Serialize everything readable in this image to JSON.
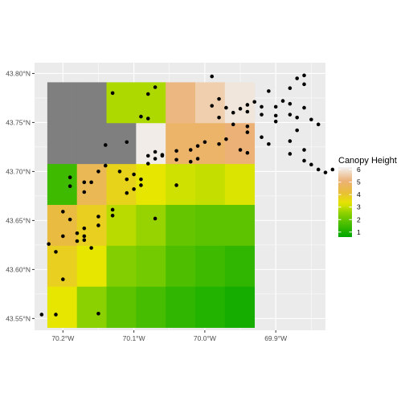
{
  "chart_data": {
    "type": "heatmap",
    "title": "",
    "x_axis": {
      "label": "",
      "range_deg_west": [
        70.24,
        69.83
      ],
      "ticks": [
        {
          "value": 70.2,
          "label": "70.2°W"
        },
        {
          "value": 70.1,
          "label": "70.1°W"
        },
        {
          "value": 70.0,
          "label": "70.0°W"
        },
        {
          "value": 69.9,
          "label": "69.9°W"
        }
      ]
    },
    "y_axis": {
      "label": "",
      "range_deg_north": [
        43.538,
        43.811
      ],
      "ticks": [
        {
          "value": 43.55,
          "label": "43.55°N"
        },
        {
          "value": 43.6,
          "label": "43.60°N"
        },
        {
          "value": 43.65,
          "label": "43.65°N"
        },
        {
          "value": 43.7,
          "label": "43.70°N"
        },
        {
          "value": 43.75,
          "label": "43.75°N"
        },
        {
          "value": 43.8,
          "label": "43.80°N"
        }
      ]
    },
    "legend": {
      "title": "Canopy Height",
      "placement": "right",
      "range": [
        0.6,
        6.2
      ],
      "breaks": [
        1,
        2,
        3,
        4,
        5,
        6
      ],
      "labels": [
        "1",
        "2",
        "3",
        "4",
        "5",
        "6"
      ],
      "color_stops": [
        {
          "value": 0.6,
          "color": "#00a600"
        },
        {
          "value": 1.5,
          "color": "#3ebb00"
        },
        {
          "value": 2.5,
          "color": "#8bd000"
        },
        {
          "value": 3.3,
          "color": "#e6e600"
        },
        {
          "value": 4.2,
          "color": "#e9bd3a"
        },
        {
          "value": 5.1,
          "color": "#ecb176"
        },
        {
          "value": 6.2,
          "color": "#f2f2f2"
        }
      ]
    },
    "no_data_color": "#7f7f7f",
    "grid": true,
    "raster": {
      "cell_lon_deg": 0.0417,
      "cell_lat_deg": 0.0417,
      "lon_west_edge_deg_west": 70.222,
      "lat_north_edge_deg_north": 43.791,
      "rows": [
        [
          null,
          null,
          2.8,
          2.8,
          5.2,
          5.6,
          6.0
        ],
        [
          null,
          null,
          null,
          6.1,
          4.9,
          4.9,
          5.1
        ],
        [
          1.5,
          4.6,
          3.7,
          3.3,
          3.1,
          3.0,
          3.2
        ],
        [
          4.3,
          3.8,
          2.9,
          2.6,
          2.0,
          1.9,
          1.9
        ],
        [
          3.8,
          3.3,
          2.4,
          2.2,
          1.7,
          1.5,
          1.3
        ],
        [
          3.3,
          2.5,
          1.9,
          1.6,
          1.3,
          1.1,
          0.9
        ]
      ]
    },
    "points": [
      [
        69.86,
        43.798
      ],
      [
        69.87,
        43.795
      ],
      [
        69.86,
        43.789
      ],
      [
        69.88,
        43.785
      ],
      [
        69.99,
        43.797
      ],
      [
        70.07,
        43.786
      ],
      [
        70.08,
        43.779
      ],
      [
        70.13,
        43.78
      ],
      [
        69.98,
        43.774
      ],
      [
        69.91,
        43.782
      ],
      [
        69.93,
        43.771
      ],
      [
        69.92,
        43.766
      ],
      [
        69.94,
        43.768
      ],
      [
        69.95,
        43.764
      ],
      [
        69.97,
        43.765
      ],
      [
        69.99,
        43.767
      ],
      [
        69.89,
        43.772
      ],
      [
        69.88,
        43.769
      ],
      [
        69.9,
        43.766
      ],
      [
        69.86,
        43.765
      ],
      [
        69.88,
        43.758
      ],
      [
        69.87,
        43.755
      ],
      [
        69.85,
        43.753
      ],
      [
        69.84,
        43.748
      ],
      [
        69.9,
        43.757
      ],
      [
        69.92,
        43.758
      ],
      [
        69.94,
        43.761
      ],
      [
        69.96,
        43.76
      ],
      [
        69.98,
        43.755
      ],
      [
        69.96,
        43.748
      ],
      [
        69.94,
        43.746
      ],
      [
        69.9,
        43.751
      ],
      [
        69.87,
        43.742
      ],
      [
        70.09,
        43.756
      ],
      [
        70.08,
        43.754
      ],
      [
        69.94,
        43.74
      ],
      [
        69.92,
        43.735
      ],
      [
        69.97,
        43.733
      ],
      [
        69.98,
        43.728
      ],
      [
        70.0,
        43.73
      ],
      [
        70.01,
        43.726
      ],
      [
        70.02,
        43.722
      ],
      [
        70.04,
        43.721
      ],
      [
        70.06,
        43.717
      ],
      [
        70.07,
        43.72
      ],
      [
        70.08,
        43.716
      ],
      [
        70.11,
        43.73
      ],
      [
        70.14,
        43.727
      ],
      [
        69.88,
        43.718
      ],
      [
        69.86,
        43.711
      ],
      [
        69.85,
        43.707
      ],
      [
        69.86,
        43.722
      ],
      [
        69.94,
        43.719
      ],
      [
        69.95,
        43.722
      ],
      [
        69.91,
        43.728
      ],
      [
        69.88,
        43.731
      ],
      [
        70.01,
        43.713
      ],
      [
        70.02,
        43.71
      ],
      [
        70.04,
        43.712
      ],
      [
        70.06,
        43.716
      ],
      [
        70.07,
        43.713
      ],
      [
        70.08,
        43.708
      ],
      [
        69.84,
        43.702
      ],
      [
        69.83,
        43.699
      ],
      [
        69.82,
        43.702
      ],
      [
        70.14,
        43.706
      ],
      [
        70.15,
        43.7
      ],
      [
        70.12,
        43.7
      ],
      [
        70.1,
        43.697
      ],
      [
        70.09,
        43.692
      ],
      [
        70.11,
        43.692
      ],
      [
        70.1,
        43.682
      ],
      [
        70.11,
        43.678
      ],
      [
        70.04,
        43.686
      ],
      [
        70.09,
        43.686
      ],
      [
        70.19,
        43.694
      ],
      [
        70.19,
        43.685
      ],
      [
        70.17,
        43.689
      ],
      [
        70.17,
        43.679
      ],
      [
        70.16,
        43.689
      ],
      [
        70.13,
        43.661
      ],
      [
        70.07,
        43.652
      ],
      [
        70.13,
        43.655
      ],
      [
        70.2,
        43.659
      ],
      [
        70.17,
        43.642
      ],
      [
        70.17,
        43.634
      ],
      [
        70.17,
        43.63
      ],
      [
        70.15,
        43.645
      ],
      [
        70.15,
        43.654
      ],
      [
        70.22,
        43.626
      ],
      [
        70.21,
        43.618
      ],
      [
        70.2,
        43.59
      ],
      [
        70.23,
        43.554
      ],
      [
        70.21,
        43.554
      ],
      [
        70.18,
        43.629
      ],
      [
        70.2,
        43.634
      ],
      [
        70.19,
        43.651
      ],
      [
        70.15,
        43.555
      ],
      [
        70.16,
        43.622
      ],
      [
        70.18,
        43.637
      ]
    ]
  }
}
